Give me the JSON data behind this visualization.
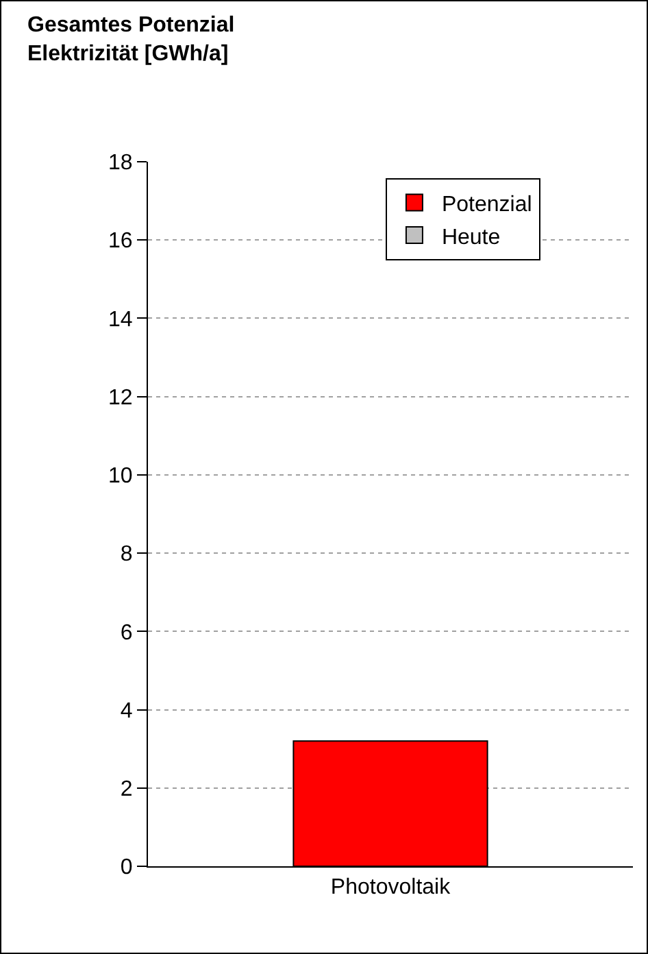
{
  "chart_data": {
    "type": "bar",
    "title": "Gesamtes Potenzial\nElektrizität [GWh/a]",
    "categories": [
      "Photovoltaik"
    ],
    "series": [
      {
        "name": "Potenzial",
        "color": "#ff0000",
        "values": [
          3.2
        ]
      },
      {
        "name": "Heute",
        "color": "#c0c0c0",
        "values": [
          null
        ]
      }
    ],
    "ylim": [
      0,
      18
    ],
    "yticks": [
      0,
      2,
      4,
      6,
      8,
      10,
      12,
      14,
      16,
      18
    ],
    "grid": "y",
    "legend": "top right"
  }
}
